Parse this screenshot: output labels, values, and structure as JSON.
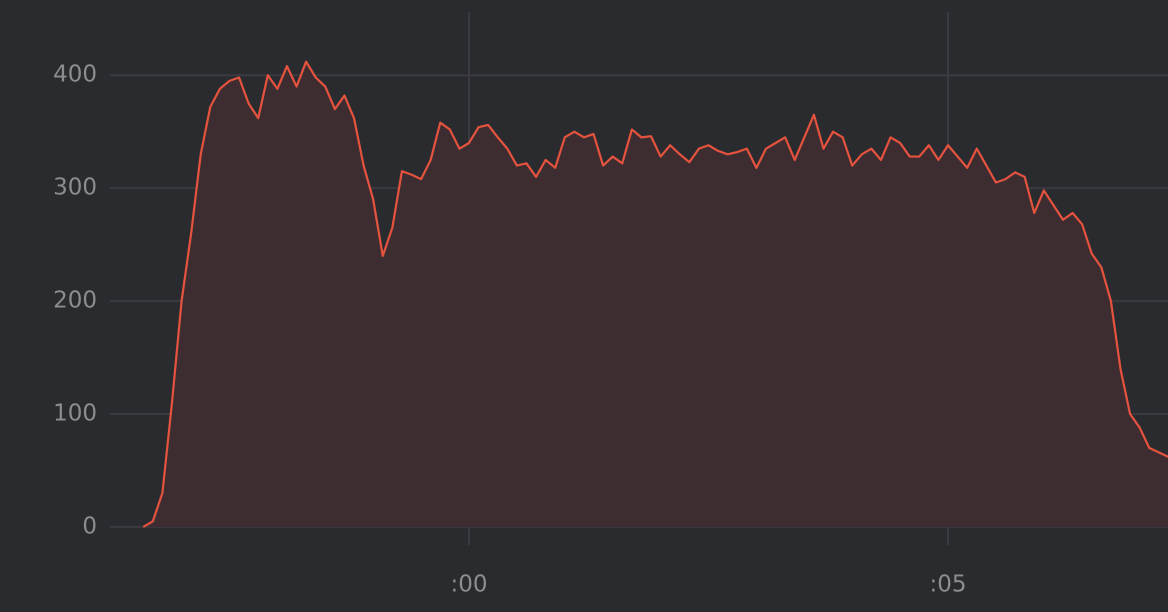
{
  "chart_data": {
    "type": "area",
    "x": [
      -3.4,
      -3.3,
      -3.2,
      -3.1,
      -3.0,
      -2.9,
      -2.8,
      -2.7,
      -2.6,
      -2.5,
      -2.4,
      -2.3,
      -2.2,
      -2.1,
      -2.0,
      -1.9,
      -1.8,
      -1.7,
      -1.6,
      -1.5,
      -1.4,
      -1.3,
      -1.2,
      -1.1,
      -1.0,
      -0.9,
      -0.8,
      -0.7,
      -0.6,
      -0.5,
      -0.4,
      -0.3,
      -0.2,
      -0.1,
      0,
      0.1,
      0.2,
      0.3,
      0.4,
      0.5,
      0.6,
      0.7,
      0.8,
      0.9,
      1.0,
      1.1,
      1.2,
      1.3,
      1.4,
      1.5,
      1.6,
      1.7,
      1.8,
      1.9,
      2.0,
      2.1,
      2.2,
      2.3,
      2.4,
      2.5,
      2.6,
      2.7,
      2.8,
      2.9,
      3.0,
      3.1,
      3.2,
      3.3,
      3.4,
      3.5,
      3.6,
      3.7,
      3.8,
      3.9,
      4.0,
      4.1,
      4.2,
      4.3,
      4.4,
      4.5,
      4.6,
      4.7,
      4.8,
      4.9,
      5.0,
      5.1,
      5.2,
      5.3,
      5.4,
      5.5,
      5.6,
      5.7,
      5.8,
      5.9,
      6.0,
      6.1,
      6.2,
      6.3,
      6.4,
      6.5,
      6.6,
      6.7,
      6.8,
      6.9,
      7.0,
      7.1,
      7.2,
      7.3
    ],
    "values": [
      0,
      5,
      30,
      110,
      200,
      260,
      330,
      372,
      388,
      395,
      398,
      375,
      362,
      400,
      388,
      408,
      390,
      412,
      398,
      390,
      370,
      382,
      362,
      320,
      290,
      240,
      265,
      315,
      312,
      308,
      325,
      358,
      352,
      335,
      340,
      354,
      356,
      345,
      335,
      320,
      322,
      310,
      325,
      318,
      345,
      350,
      345,
      348,
      320,
      328,
      322,
      352,
      345,
      346,
      328,
      338,
      330,
      323,
      335,
      338,
      333,
      330,
      332,
      335,
      318,
      335,
      340,
      345,
      325,
      345,
      365,
      335,
      350,
      345,
      320,
      330,
      335,
      325,
      345,
      340,
      328,
      328,
      338,
      325,
      338,
      328,
      318,
      335,
      320,
      305,
      308,
      314,
      310,
      278,
      298,
      285,
      272,
      278,
      268,
      242,
      230,
      200,
      140,
      100,
      88,
      70,
      66,
      62
    ],
    "color": "#e5533f",
    "fill_color": "#3d2d30",
    "xlim": [
      -3.747,
      7.296
    ],
    "ylim": [
      -16,
      456
    ],
    "xticks": [
      {
        "value": 0,
        "label": ":00"
      },
      {
        "value": 5,
        "label": ":05"
      }
    ],
    "yticks": [
      0,
      100,
      200,
      300,
      400
    ],
    "grid": true
  }
}
